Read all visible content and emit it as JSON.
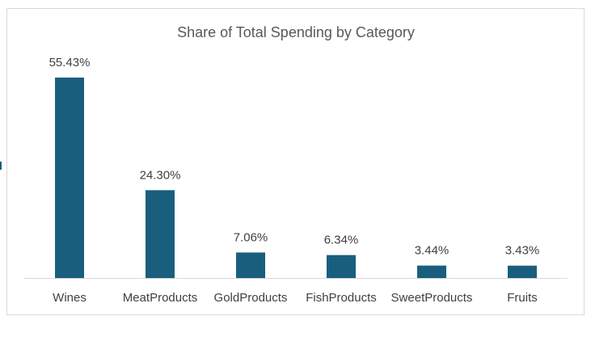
{
  "chart_data": {
    "type": "bar",
    "title": "Share of Total Spending by Category",
    "categories": [
      "Wines",
      "MeatProducts",
      "GoldProducts",
      "FishProducts",
      "SweetProducts",
      "Fruits"
    ],
    "values": [
      55.43,
      24.3,
      7.06,
      6.34,
      3.44,
      3.43
    ],
    "data_labels": [
      "55.43%",
      "24.30%",
      "7.06%",
      "6.34%",
      "3.44%",
      "3.43%"
    ],
    "xlabel": "",
    "ylabel": "",
    "ylim": [
      0,
      55.43
    ],
    "grid": false,
    "legend": "none",
    "bar_color": "#1a5e7e",
    "axis_color": "#d9d9d9"
  }
}
